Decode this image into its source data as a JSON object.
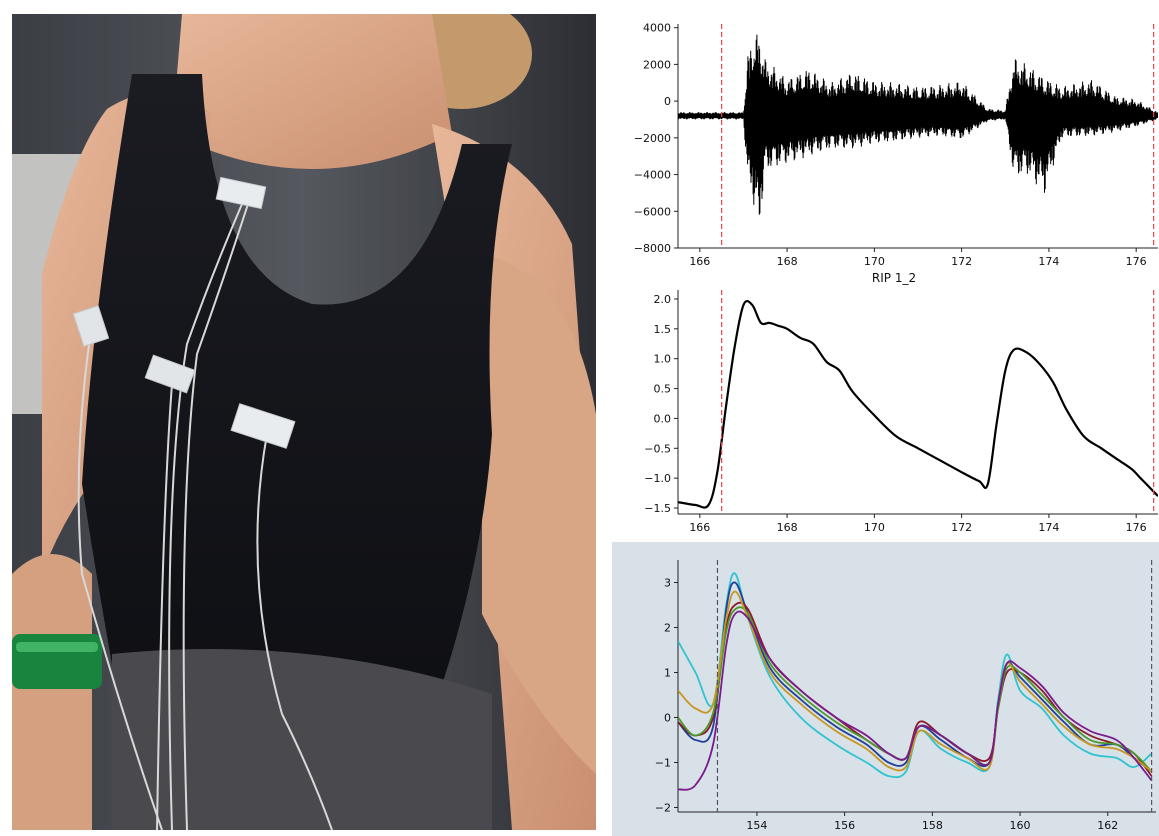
{
  "photo": {
    "subject": "person wearing black tank top with chest electrodes and a green wrist band"
  },
  "chart_data": [
    {
      "type": "line",
      "title": "",
      "xlabel": "",
      "ylabel": "",
      "xlim": [
        165.5,
        176.5
      ],
      "ylim": [
        -8000,
        4200
      ],
      "xticks": [
        166,
        168,
        170,
        172,
        174,
        176
      ],
      "yticks": [
        4000,
        2000,
        0,
        -2000,
        -4000,
        -6000,
        -8000
      ],
      "vlines": [
        166.5,
        176.4
      ],
      "vline_color": "#e8434f",
      "grid": false,
      "background": "#ffffff",
      "series": [
        {
          "color": "#000000",
          "envelope": [
            {
              "x": 165.6,
              "hi": -600,
              "lo": -1000
            },
            {
              "x": 167.0,
              "hi": -600,
              "lo": -1000
            },
            {
              "x": 167.1,
              "hi": 2500,
              "lo": -4500
            },
            {
              "x": 167.2,
              "hi": 3500,
              "lo": -5200
            },
            {
              "x": 167.35,
              "hi": 3800,
              "lo": -7400
            },
            {
              "x": 167.5,
              "hi": 2300,
              "lo": -3800
            },
            {
              "x": 168.0,
              "hi": 1200,
              "lo": -3400
            },
            {
              "x": 168.5,
              "hi": 1800,
              "lo": -3000
            },
            {
              "x": 169.0,
              "hi": 1000,
              "lo": -2600
            },
            {
              "x": 169.5,
              "hi": 1600,
              "lo": -2600
            },
            {
              "x": 170.0,
              "hi": 1100,
              "lo": -2300
            },
            {
              "x": 170.5,
              "hi": 1000,
              "lo": -2200
            },
            {
              "x": 171.0,
              "hi": 800,
              "lo": -2000
            },
            {
              "x": 171.5,
              "hi": 900,
              "lo": -1900
            },
            {
              "x": 172.0,
              "hi": 1100,
              "lo": -2100
            },
            {
              "x": 172.6,
              "hi": -400,
              "lo": -1100
            },
            {
              "x": 173.0,
              "hi": -500,
              "lo": -1000
            },
            {
              "x": 173.2,
              "hi": 2400,
              "lo": -4200
            },
            {
              "x": 173.5,
              "hi": 2000,
              "lo": -4000
            },
            {
              "x": 173.9,
              "hi": 1300,
              "lo": -5100
            },
            {
              "x": 174.3,
              "hi": 800,
              "lo": -2000
            },
            {
              "x": 175.0,
              "hi": 1200,
              "lo": -1900
            },
            {
              "x": 175.5,
              "hi": 300,
              "lo": -1700
            },
            {
              "x": 176.0,
              "hi": 100,
              "lo": -1400
            },
            {
              "x": 176.5,
              "hi": -600,
              "lo": -1000
            }
          ]
        }
      ]
    },
    {
      "type": "line",
      "title": "RIP 1_2",
      "xlabel": "",
      "ylabel": "",
      "xlim": [
        165.5,
        176.5
      ],
      "ylim": [
        -1.6,
        2.15
      ],
      "xticks": [
        166,
        168,
        170,
        172,
        174,
        176
      ],
      "yticks": [
        2.0,
        1.5,
        1.0,
        0.5,
        0.0,
        -0.5,
        -1.0,
        -1.5
      ],
      "vlines": [
        166.5,
        176.4
      ],
      "vline_color": "#e8434f",
      "grid": false,
      "background": "#ffffff",
      "series": [
        {
          "color": "#000000",
          "x": [
            165.5,
            165.9,
            166.2,
            166.4,
            166.6,
            166.8,
            167.0,
            167.2,
            167.4,
            167.6,
            167.8,
            168.0,
            168.3,
            168.6,
            168.9,
            169.2,
            169.5,
            170.0,
            170.5,
            171.0,
            171.5,
            172.0,
            172.4,
            172.6,
            172.8,
            173.0,
            173.2,
            173.5,
            173.8,
            174.1,
            174.4,
            174.8,
            175.2,
            175.6,
            175.9,
            176.1,
            176.3,
            176.5
          ],
          "y": [
            -1.4,
            -1.45,
            -1.45,
            -0.9,
            0.2,
            1.2,
            1.9,
            1.9,
            1.6,
            1.6,
            1.55,
            1.5,
            1.35,
            1.25,
            0.95,
            0.8,
            0.45,
            0.05,
            -0.3,
            -0.5,
            -0.7,
            -0.9,
            -1.05,
            -1.1,
            -0.1,
            0.8,
            1.15,
            1.1,
            0.9,
            0.6,
            0.15,
            -0.3,
            -0.5,
            -0.7,
            -0.85,
            -1.0,
            -1.15,
            -1.3
          ]
        }
      ]
    },
    {
      "type": "line",
      "title": "",
      "xlabel": "",
      "ylabel": "",
      "xlim": [
        152.2,
        163.1
      ],
      "ylim": [
        -2.1,
        3.5
      ],
      "xticks": [
        154,
        156,
        158,
        160,
        162
      ],
      "yticks": [
        3,
        2,
        1,
        0,
        -1,
        -2
      ],
      "vlines": [
        153.1,
        163.0
      ],
      "vline_color": "#555566",
      "grid": false,
      "background": "#d8e0e8",
      "series": [
        {
          "color": "#2ec4d0",
          "x": [
            152.2,
            152.6,
            153.0,
            153.3,
            153.5,
            153.8,
            154.3,
            155.0,
            155.8,
            156.5,
            157.0,
            157.4,
            157.7,
            158.2,
            158.8,
            159.3,
            159.5,
            159.7,
            160.0,
            160.5,
            161.0,
            161.6,
            162.2,
            162.6,
            163.0
          ],
          "y": [
            1.7,
            1.0,
            0.3,
            2.5,
            3.2,
            2.2,
            0.9,
            0.0,
            -0.6,
            -1.0,
            -1.3,
            -1.2,
            -0.3,
            -0.7,
            -1.0,
            -1.1,
            0.4,
            1.4,
            0.6,
            0.2,
            -0.4,
            -0.8,
            -0.9,
            -1.1,
            -0.8
          ]
        },
        {
          "color": "#1f3f9a",
          "x": [
            152.2,
            152.6,
            153.0,
            153.3,
            153.5,
            153.8,
            154.3,
            155.0,
            155.8,
            156.5,
            157.0,
            157.4,
            157.7,
            158.2,
            158.8,
            159.3,
            159.5,
            159.7,
            160.0,
            160.5,
            161.0,
            161.6,
            162.2,
            162.6,
            163.0
          ],
          "y": [
            -0.1,
            -0.5,
            -0.2,
            2.4,
            3.0,
            2.3,
            1.1,
            0.4,
            -0.2,
            -0.6,
            -1.0,
            -1.0,
            -0.2,
            -0.5,
            -0.9,
            -1.0,
            0.3,
            1.2,
            0.9,
            0.4,
            -0.1,
            -0.6,
            -0.6,
            -0.9,
            -1.2
          ]
        },
        {
          "color": "#8b1a2b",
          "x": [
            152.2,
            152.6,
            153.0,
            153.3,
            153.5,
            153.8,
            154.3,
            155.0,
            155.8,
            156.5,
            157.0,
            157.4,
            157.7,
            158.2,
            158.8,
            159.3,
            159.5,
            159.7,
            160.0,
            160.5,
            161.0,
            161.6,
            162.2,
            162.6,
            163.0
          ],
          "y": [
            -0.1,
            -0.4,
            0.0,
            2.0,
            2.5,
            2.4,
            1.3,
            0.6,
            0.0,
            -0.5,
            -0.8,
            -0.9,
            -0.1,
            -0.4,
            -0.8,
            -0.9,
            0.2,
            1.0,
            1.0,
            0.6,
            0.0,
            -0.4,
            -0.6,
            -0.8,
            -1.3
          ]
        },
        {
          "color": "#4c9a2a",
          "x": [
            152.2,
            152.6,
            153.0,
            153.3,
            153.5,
            153.8,
            154.3,
            155.0,
            155.8,
            156.5,
            157.0,
            157.4,
            157.7,
            158.2,
            158.8,
            159.3,
            159.5,
            159.7,
            160.0,
            160.5,
            161.0,
            161.6,
            162.2,
            162.6,
            163.0
          ],
          "y": [
            0.0,
            -0.4,
            0.1,
            1.9,
            2.4,
            2.3,
            1.2,
            0.5,
            -0.1,
            -0.5,
            -0.8,
            -0.9,
            -0.2,
            -0.4,
            -0.8,
            -1.0,
            0.2,
            1.1,
            1.0,
            0.5,
            0.0,
            -0.5,
            -0.6,
            -0.8,
            -1.2
          ]
        },
        {
          "color": "#c8971f",
          "x": [
            152.2,
            152.6,
            153.0,
            153.3,
            153.5,
            153.8,
            154.3,
            155.0,
            155.8,
            156.5,
            157.0,
            157.4,
            157.7,
            158.2,
            158.8,
            159.3,
            159.5,
            159.7,
            160.0,
            160.5,
            161.0,
            161.6,
            162.2,
            162.6,
            163.0
          ],
          "y": [
            0.6,
            0.2,
            0.3,
            2.2,
            2.8,
            2.2,
            1.0,
            0.3,
            -0.3,
            -0.7,
            -1.1,
            -1.1,
            -0.3,
            -0.6,
            -0.9,
            -1.1,
            0.3,
            1.2,
            0.8,
            0.3,
            -0.2,
            -0.6,
            -0.7,
            -0.9,
            -1.2
          ]
        },
        {
          "color": "#7a1a8c",
          "x": [
            152.2,
            152.6,
            153.0,
            153.3,
            153.5,
            153.8,
            154.3,
            155.0,
            155.8,
            156.5,
            157.0,
            157.4,
            157.7,
            158.2,
            158.8,
            159.3,
            159.5,
            159.7,
            160.0,
            160.5,
            161.0,
            161.6,
            162.2,
            162.6,
            163.0
          ],
          "y": [
            -1.6,
            -1.5,
            -0.6,
            1.6,
            2.3,
            2.2,
            1.3,
            0.6,
            0.0,
            -0.4,
            -0.8,
            -0.9,
            -0.2,
            -0.4,
            -0.8,
            -1.0,
            0.3,
            1.2,
            1.1,
            0.7,
            0.1,
            -0.3,
            -0.5,
            -0.9,
            -1.4
          ]
        }
      ]
    }
  ]
}
